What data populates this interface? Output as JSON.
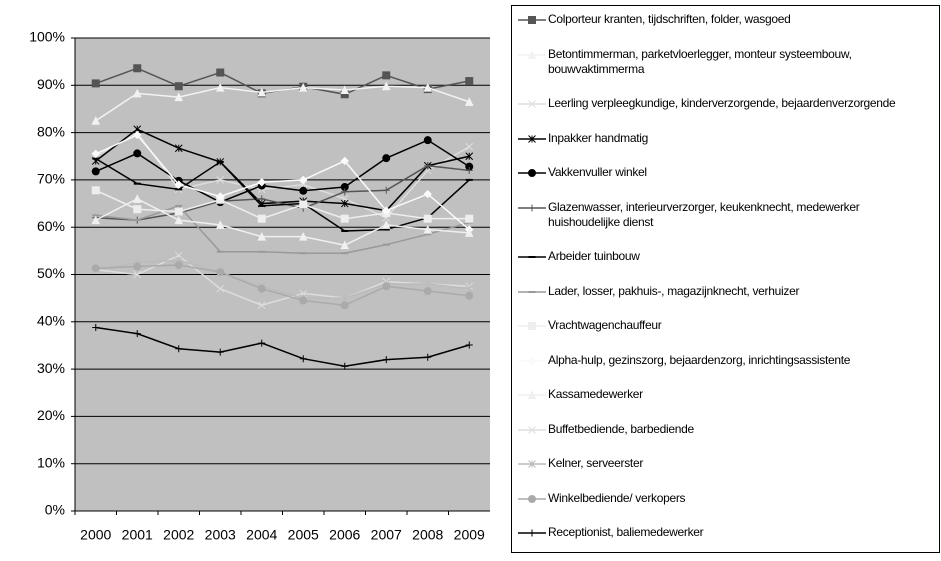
{
  "chart_data": {
    "type": "line",
    "x": [
      "2000",
      "2001",
      "2002",
      "2003",
      "2004",
      "2005",
      "2006",
      "2007",
      "2008",
      "2009"
    ],
    "ylim": [
      0,
      100
    ],
    "yticks": [
      {
        "value": 0,
        "label": "0%"
      },
      {
        "value": 10,
        "label": "10%"
      },
      {
        "value": 20,
        "label": "20%"
      },
      {
        "value": 30,
        "label": "30%"
      },
      {
        "value": 40,
        "label": "40%"
      },
      {
        "value": 50,
        "label": "50%"
      },
      {
        "value": 60,
        "label": "60%"
      },
      {
        "value": 70,
        "label": "70%"
      },
      {
        "value": 80,
        "label": "80%"
      },
      {
        "value": 90,
        "label": "90%"
      },
      {
        "value": 100,
        "label": "100%"
      }
    ],
    "grid": true,
    "legend": "right",
    "series": [
      {
        "name": "Colporteur kranten, tijdschriften, folder, wasgoed",
        "color": "#555555",
        "marker": "square",
        "values": [
          90.4,
          93.6,
          89.8,
          92.7,
          88.3,
          89.7,
          88.1,
          92.1,
          89.2,
          90.9
        ]
      },
      {
        "name": "Betontimmerman, parketvloerlegger, monteur systeembouw, bouwvaktimmerma",
        "color": "#f2f2f2",
        "marker": "triangle",
        "values": [
          82.5,
          88.3,
          87.5,
          89.5,
          88.5,
          89.5,
          89.0,
          89.8,
          89.5,
          86.5
        ]
      },
      {
        "name": "Leerling verpleegkundige, kinderverzorgende, bejaardenverzorgende",
        "color": "#dddddd",
        "marker": "x",
        "values": [
          75.0,
          80.0,
          68.0,
          70.0,
          68.0,
          69.0,
          66.0,
          62.0,
          72.0,
          77.0
        ]
      },
      {
        "name": "Inpakker handmatig",
        "color": "#000000",
        "marker": "asterisk",
        "values": [
          74.0,
          80.7,
          76.7,
          73.8,
          65.0,
          65.5,
          65.0,
          63.5,
          73.0,
          75.0
        ]
      },
      {
        "name": "Vakkenvuller winkel",
        "color": "#000000",
        "marker": "circle",
        "values": [
          71.8,
          75.6,
          69.8,
          65.3,
          68.8,
          67.7,
          68.5,
          74.6,
          78.4,
          72.8
        ]
      },
      {
        "name": "Glazenwasser, interieurverzorger, keukenknecht, medewerker huishoudelijke dienst",
        "color": "#555555",
        "marker": "plus",
        "values": [
          62.0,
          61.5,
          63.0,
          65.5,
          66.0,
          64.0,
          67.5,
          67.8,
          73.0,
          72.0
        ]
      },
      {
        "name": "Arbeider tuinbouw",
        "color": "#000000",
        "marker": "dash",
        "values": [
          74.5,
          69.2,
          68.0,
          73.8,
          64.5,
          65.0,
          59.2,
          59.5,
          62.0,
          70.0
        ]
      },
      {
        "name": "Lader, losser, pakhuis-, magazijnknecht, verhuizer",
        "color": "#999999",
        "marker": "dash",
        "values": [
          62.5,
          61.5,
          64.5,
          54.8,
          54.8,
          54.5,
          54.5,
          56.3,
          58.5,
          61.0
        ]
      },
      {
        "name": "Vrachtwagenchauffeur",
        "color": "#eeeeee",
        "marker": "square",
        "values": [
          67.8,
          63.8,
          63.3,
          65.8,
          61.8,
          64.8,
          61.8,
          63.0,
          61.8,
          61.8
        ]
      },
      {
        "name": "Alpha-hulp, gezinszorg, bejaardenzorg, inrichtingsassistente",
        "color": "#fafafa",
        "marker": "diamond",
        "values": [
          75.5,
          79.5,
          69.0,
          66.5,
          69.5,
          70.0,
          74.0,
          63.5,
          67.0,
          59.5
        ]
      },
      {
        "name": "Kassamedewerker",
        "color": "#f0f0f0",
        "marker": "triangle",
        "values": [
          61.5,
          66.0,
          61.5,
          60.5,
          58.0,
          58.0,
          56.2,
          60.5,
          59.5,
          58.8
        ]
      },
      {
        "name": "Buffetbediende, barbediende",
        "color": "#dddddd",
        "marker": "x",
        "values": [
          51.0,
          50.0,
          54.0,
          47.0,
          43.5,
          46.0,
          45.0,
          48.5,
          48.0,
          47.5
        ]
      },
      {
        "name": "Kelner, serveerster",
        "color": "#bbbbbb",
        "marker": "asterisk",
        "values": [
          51.0,
          52.5,
          53.0,
          50.5,
          47.5,
          45.0,
          45.0,
          48.0,
          48.0,
          47.0
        ]
      },
      {
        "name": "Winkelbediende/ verkopers",
        "color": "#aaaaaa",
        "marker": "circle",
        "values": [
          51.3,
          51.7,
          52.0,
          50.5,
          47.0,
          44.5,
          43.5,
          47.5,
          46.5,
          45.5
        ]
      },
      {
        "name": "Receptionist, baliemedewerker",
        "color": "#000000",
        "marker": "plus",
        "values": [
          38.8,
          37.5,
          34.3,
          33.6,
          35.5,
          32.2,
          30.6,
          32.0,
          32.5,
          35.1
        ]
      }
    ]
  }
}
